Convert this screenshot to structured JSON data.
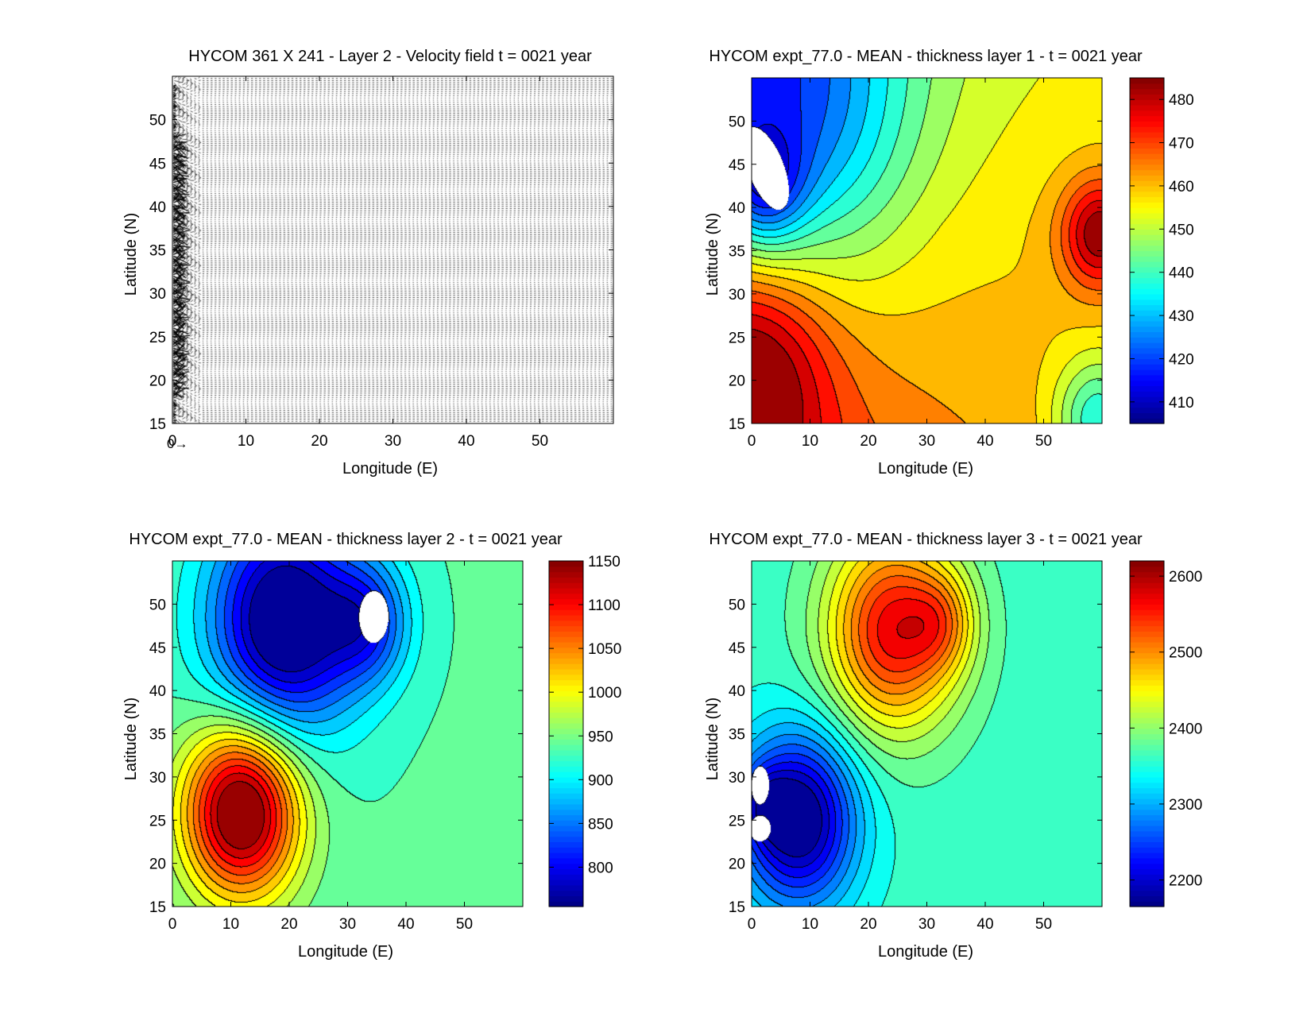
{
  "figure": {
    "background": "#ffffff"
  },
  "chart_data": [
    {
      "type": "quiver",
      "title": "HYCOM 361 X 241 - Layer 2 - Velocity field  t = 0021 year",
      "xlabel": "Longitude (E)",
      "ylabel": "Latitude (N)",
      "xlim": [
        0,
        60
      ],
      "ylim": [
        15,
        55
      ],
      "xticks": [
        0,
        10,
        20,
        30,
        40,
        50
      ],
      "yticks": [
        15,
        20,
        25,
        30,
        35,
        40,
        45,
        50
      ],
      "grid": 0.25,
      "reference_arrow": "0→",
      "colorbar": null
    },
    {
      "type": "contourf",
      "title": "HYCOM expt_77.0 - MEAN - thickness layer 1 - t = 0021 year",
      "xlabel": "Longitude (E)",
      "ylabel": "Latitude (N)",
      "xlim": [
        0,
        60
      ],
      "ylim": [
        15,
        55
      ],
      "xticks": [
        0,
        10,
        20,
        30,
        40,
        50
      ],
      "yticks": [
        15,
        20,
        25,
        30,
        35,
        40,
        45,
        50
      ],
      "colormap": "jet",
      "colorbar": {
        "min": 405,
        "max": 485,
        "ticks": [
          410,
          420,
          430,
          440,
          450,
          460,
          470,
          480
        ]
      },
      "contour_levels": 18,
      "blanked_regions": [
        {
          "cx": 2.5,
          "cy": 44.5,
          "rx": 2.8,
          "ry": 5.5,
          "rot": 35
        }
      ],
      "features": [
        {
          "x": 9,
          "y": 49,
          "v": 406,
          "s": 13
        },
        {
          "x": 2,
          "y": 42,
          "v": 408,
          "s": 5
        },
        {
          "x": 59,
          "y": 37,
          "v": 474,
          "s": 5
        },
        {
          "x": 1,
          "y": 22,
          "v": 487,
          "s": 9
        },
        {
          "x": 58,
          "y": 16,
          "v": 436,
          "s": 5
        }
      ],
      "field": "layer1"
    },
    {
      "type": "contourf",
      "title": "HYCOM expt_77.0 - MEAN - thickness layer 2 - t = 0021 year",
      "xlabel": "Longitude (E)",
      "ylabel": "Latitude (N)",
      "xlim": [
        0,
        60
      ],
      "ylim": [
        15,
        55
      ],
      "xticks": [
        0,
        10,
        20,
        30,
        40,
        50
      ],
      "yticks": [
        15,
        20,
        25,
        30,
        35,
        40,
        45,
        50
      ],
      "colormap": "jet",
      "colorbar": {
        "min": 755,
        "max": 1150,
        "ticks": [
          800,
          850,
          900,
          950,
          1000,
          1050,
          1100,
          1150
        ]
      },
      "contour_levels": 20,
      "blanked_regions": [
        {
          "cx": 34.5,
          "cy": 48.5,
          "rx": 2.5,
          "ry": 3.0,
          "rot": 0
        }
      ],
      "field": "layer2"
    },
    {
      "type": "contourf",
      "title": "HYCOM expt_77.0 - MEAN - thickness layer 3 - t = 0021 year",
      "xlabel": "Longitude (E)",
      "ylabel": "Latitude (N)",
      "xlim": [
        0,
        60
      ],
      "ylim": [
        15,
        55
      ],
      "xticks": [
        0,
        10,
        20,
        30,
        40,
        50
      ],
      "yticks": [
        15,
        20,
        25,
        30,
        35,
        40,
        45,
        50
      ],
      "colormap": "jet",
      "colorbar": {
        "min": 2165,
        "max": 2620,
        "ticks": [
          2200,
          2300,
          2400,
          2500,
          2600
        ]
      },
      "contour_levels": 22,
      "blanked_regions": [
        {
          "cx": 1.5,
          "cy": 29.0,
          "rx": 1.5,
          "ry": 2.2,
          "rot": 0
        },
        {
          "cx": 1.5,
          "cy": 24.0,
          "rx": 1.8,
          "ry": 1.5,
          "rot": 0
        }
      ],
      "field": "layer3"
    }
  ]
}
